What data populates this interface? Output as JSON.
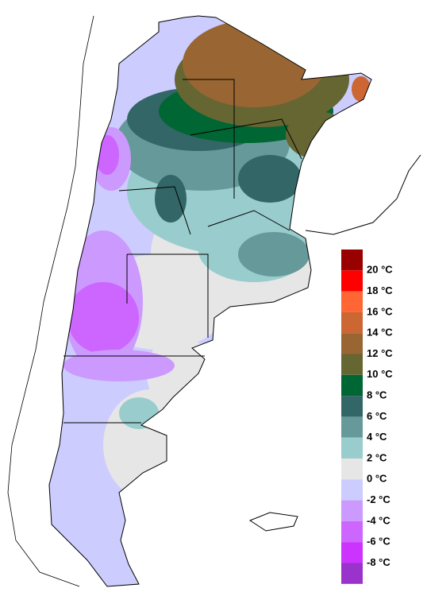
{
  "legend": {
    "colors": [
      "#990000",
      "#ff0000",
      "#ff6633",
      "#cc6633",
      "#996633",
      "#666633",
      "#006633",
      "#336666",
      "#669999",
      "#99cccc",
      "#e6e6e6",
      "#ccccff",
      "#cc99ff",
      "#cc66ff",
      "#cc33ff",
      "#9933cc"
    ],
    "labels": [
      "20 °C",
      "18 °C",
      "16 °C",
      "14 °C",
      "12 °C",
      "10 °C",
      "8 °C",
      "6 °C",
      "4 °C",
      "2 °C",
      "0 °C",
      "-2 °C",
      "-4 °C",
      "-6 °C",
      "-8 °C"
    ]
  }
}
